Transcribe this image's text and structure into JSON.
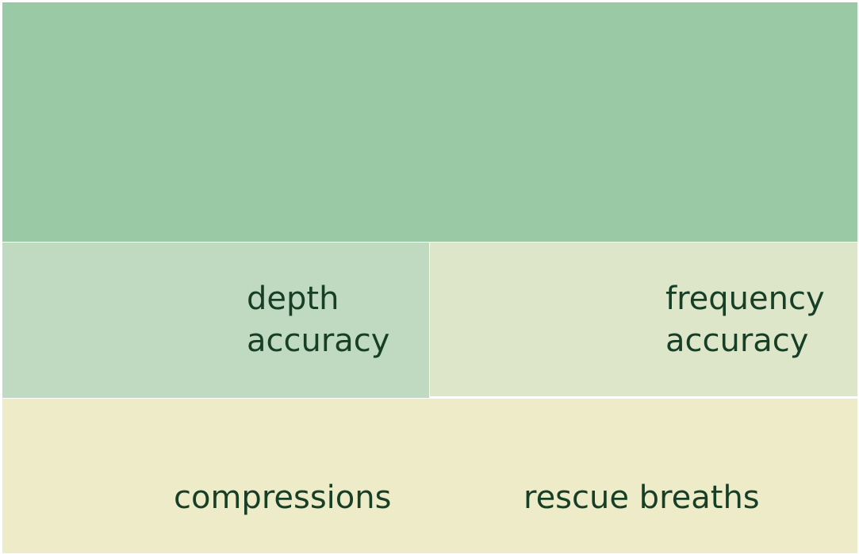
{
  "diagram": {
    "colors": {
      "top": "#99c9a5",
      "depth": "#c0d9c1",
      "frequency": "#dee6c9",
      "bottom": "#eeebc9",
      "text": "#173f26"
    },
    "labels": {
      "depth": [
        "depth",
        "accuracy"
      ],
      "frequency": [
        "frequency",
        "accuracy"
      ],
      "compressions": "compressions",
      "rescue_breaths": "rescue breaths"
    }
  }
}
